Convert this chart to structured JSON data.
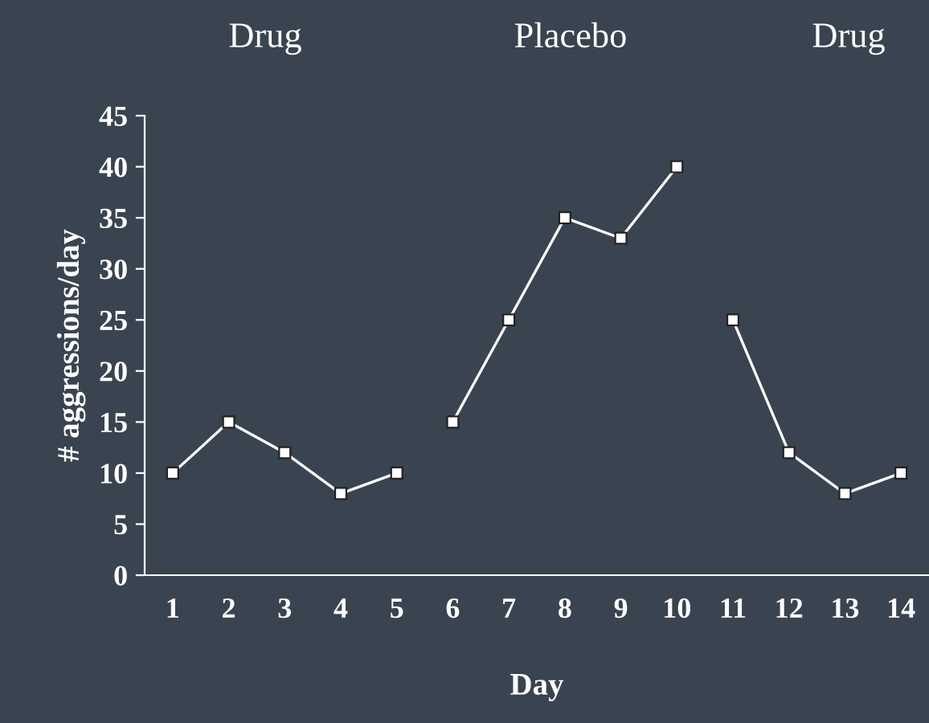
{
  "chart_data": {
    "type": "line",
    "xlabel": "Day",
    "ylabel": "# aggressions/day",
    "categories": [
      "1",
      "2",
      "3",
      "4",
      "5",
      "6",
      "7",
      "8",
      "9",
      "10",
      "11",
      "12",
      "13",
      "14"
    ],
    "series": [
      {
        "color": "#ffffff",
        "values": [
          10,
          15,
          12,
          8,
          10,
          null,
          null,
          null,
          null,
          null,
          null,
          null,
          null,
          null
        ]
      },
      {
        "color": "#ffffff",
        "values": [
          null,
          null,
          null,
          null,
          null,
          15,
          25,
          35,
          33,
          40,
          null,
          null,
          null,
          null
        ]
      },
      {
        "color": "#ffffff",
        "values": [
          null,
          null,
          null,
          null,
          null,
          null,
          null,
          null,
          null,
          null,
          25,
          12,
          8,
          10
        ]
      }
    ],
    "annotations": [
      "Drug",
      "Placebo",
      "Drug"
    ],
    "ylim": [
      0,
      45
    ],
    "yticks": [
      0,
      5,
      10,
      15,
      20,
      25,
      30,
      35,
      40,
      45
    ],
    "marker": "square",
    "line_style": "solid",
    "grid": false,
    "legend": false
  }
}
